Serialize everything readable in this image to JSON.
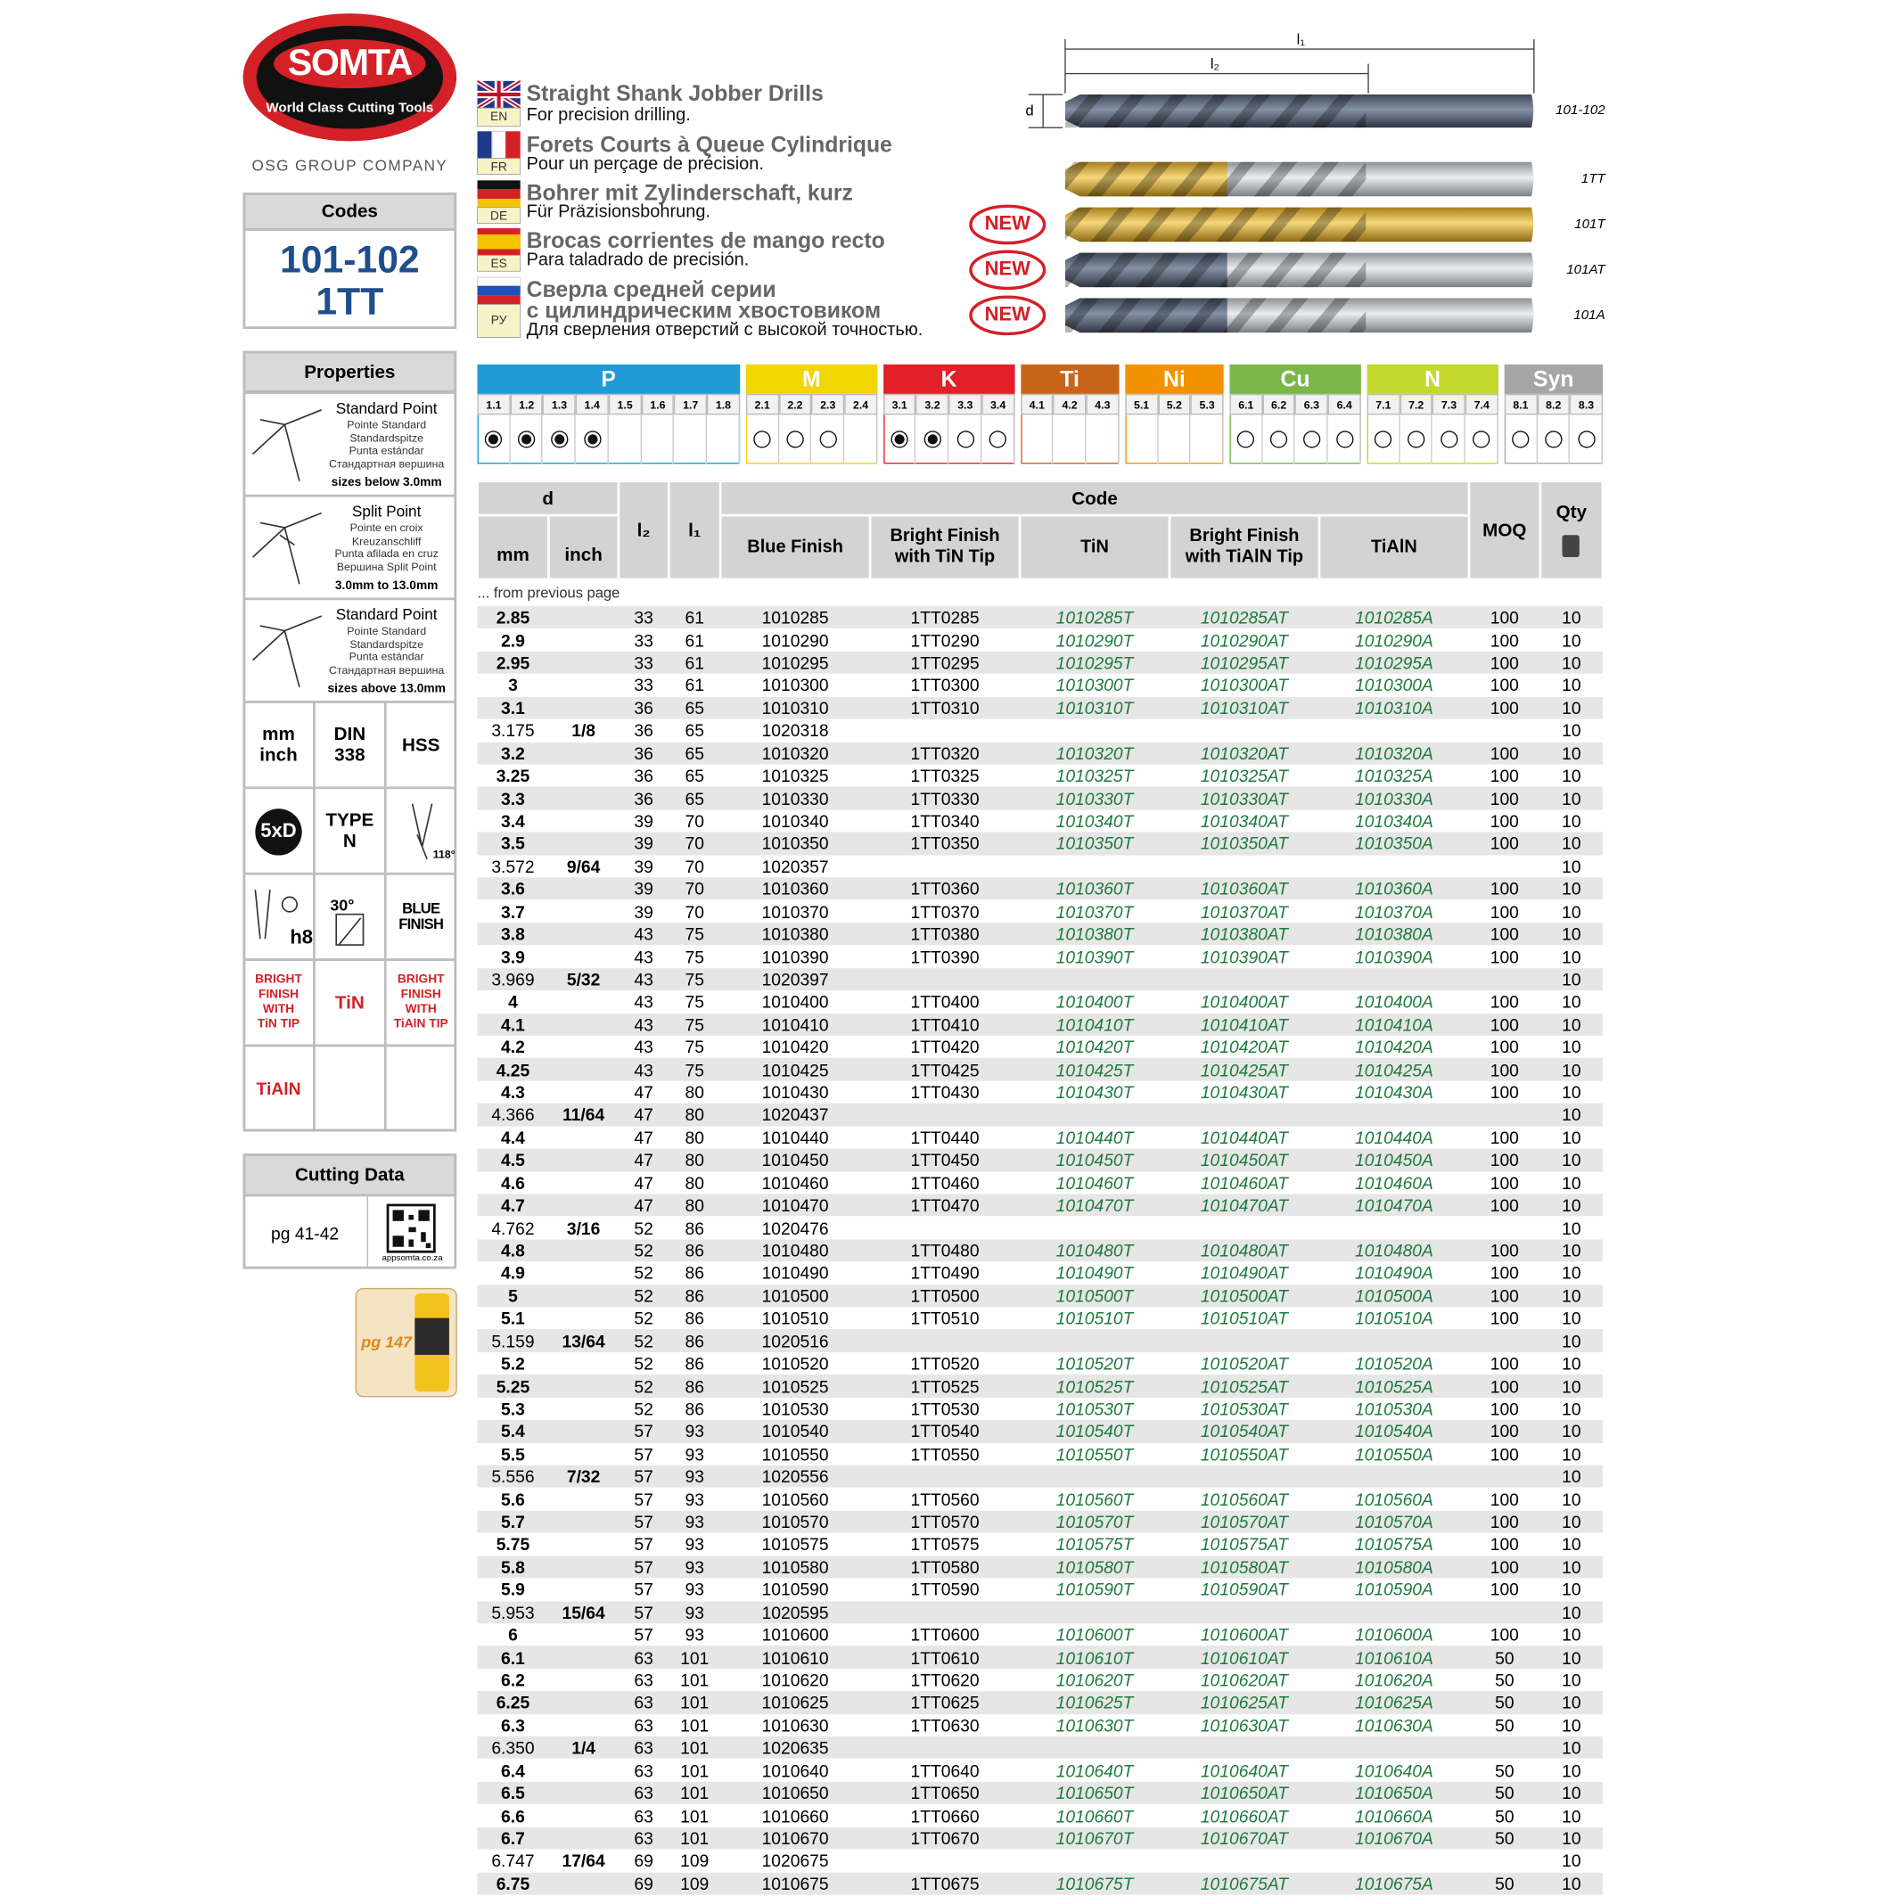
{
  "logo": {
    "brand": "SOMTA",
    "tagline": "World Class Cutting Tools",
    "group": "OSG GROUP COMPANY"
  },
  "sidebar": {
    "codes": {
      "title": "Codes",
      "values": [
        "101-102",
        "1TT"
      ]
    },
    "properties": {
      "title": "Properties",
      "points": [
        {
          "name": "Standard Point",
          "translations": [
            "Pointe Standard",
            "Standardspitze",
            "Punta estándar",
            "Стандартная вершина"
          ],
          "note": "sizes below 3.0mm"
        },
        {
          "name": "Split Point",
          "translations": [
            "Pointe en croix",
            "Kreuzanschliff",
            "Punta afilada en cruz",
            "Вершина Split Point"
          ],
          "note": "3.0mm to 13.0mm"
        },
        {
          "name": "Standard Point",
          "translations": [
            "Pointe Standard",
            "Standardspitze",
            "Punta estándar",
            "Стандартная вершина"
          ],
          "note": "sizes above 13.0mm"
        }
      ],
      "cells": [
        [
          "mm",
          "inch"
        ],
        [
          "DIN",
          "338"
        ],
        [
          "HSS"
        ],
        [
          "5xD"
        ],
        [
          "TYPE",
          "N"
        ],
        [
          "118°"
        ],
        [
          "h8"
        ],
        [
          "30°"
        ],
        [
          "BLUE",
          "FINISH"
        ],
        [
          "BRIGHT",
          "FINISH",
          "WITH",
          "TiN TIP"
        ],
        [
          "TiN"
        ],
        [
          "BRIGHT",
          "FINISH",
          "WITH",
          "TiAlN TIP"
        ],
        [
          "TiAlN"
        ]
      ]
    },
    "cutting_data": {
      "title": "Cutting Data",
      "page": "pg 41-42",
      "qr_caption": "appsomta.co.za"
    },
    "promo": "pg 147"
  },
  "header": {
    "titles": [
      {
        "lang": "EN",
        "title": [
          "Straight Shank Jobber Drills"
        ],
        "subtitle": "For precision drilling."
      },
      {
        "lang": "FR",
        "title": [
          "Forets Courts à Queue Cylindrique"
        ],
        "subtitle": "Pour un perçage de précision."
      },
      {
        "lang": "DE",
        "title": [
          "Bohrer mit Zylinderschaft, kurz"
        ],
        "subtitle": "Für Präzisionsbohrung."
      },
      {
        "lang": "ES",
        "title": [
          "Brocas corrientes de mango recto"
        ],
        "subtitle": "Para taladrado de precisión."
      },
      {
        "lang": "РУ",
        "title": [
          "Сверла средней серии",
          "с цилиндрическим хвостовиком"
        ],
        "subtitle": "Для сверления отверстий с высокой точностью."
      }
    ],
    "dimensions": {
      "l1": "l₁",
      "l2": "l₂",
      "d": "d"
    },
    "drills": [
      "101-102",
      "1TT",
      "101T",
      "101AT",
      "101A"
    ],
    "badges": [
      "NEW",
      "NEW",
      "NEW"
    ]
  },
  "materials": [
    {
      "name": "P",
      "color": "#1e9ad6",
      "subs": [
        "1.1",
        "1.2",
        "1.3",
        "1.4",
        "1.5",
        "1.6",
        "1.7",
        "1.8"
      ],
      "marks": [
        "full",
        "full",
        "full",
        "full",
        null,
        null,
        null,
        null
      ]
    },
    {
      "name": "M",
      "color": "#f2d600",
      "subs": [
        "2.1",
        "2.2",
        "2.3",
        "2.4"
      ],
      "marks": [
        "empty",
        "empty",
        "empty",
        null
      ]
    },
    {
      "name": "K",
      "color": "#e3202a",
      "subs": [
        "3.1",
        "3.2",
        "3.3",
        "3.4"
      ],
      "marks": [
        "full",
        "full",
        "empty",
        "empty"
      ]
    },
    {
      "name": "Ti",
      "color": "#c8651b",
      "subs": [
        "4.1",
        "4.2",
        "4.3"
      ],
      "marks": [
        null,
        null,
        null
      ]
    },
    {
      "name": "Ni",
      "color": "#f39200",
      "subs": [
        "5.1",
        "5.2",
        "5.3"
      ],
      "marks": [
        null,
        null,
        null
      ]
    },
    {
      "name": "Cu",
      "color": "#7ab648",
      "subs": [
        "6.1",
        "6.2",
        "6.3",
        "6.4"
      ],
      "marks": [
        "empty",
        "empty",
        "empty",
        "empty"
      ]
    },
    {
      "name": "N",
      "color": "#c5d82e",
      "subs": [
        "7.1",
        "7.2",
        "7.3",
        "7.4"
      ],
      "marks": [
        "empty",
        "empty",
        "empty",
        "empty"
      ]
    },
    {
      "name": "Syn",
      "color": "#a6a6a6",
      "subs": [
        "8.1",
        "8.2",
        "8.3"
      ],
      "marks": [
        "empty",
        "empty",
        "empty"
      ]
    }
  ],
  "table": {
    "headers": {
      "d": "d",
      "mm": "mm",
      "inch": "inch",
      "l2": "l₂",
      "l1": "l₁",
      "code": "Code",
      "codes": [
        [
          "Blue Finish"
        ],
        [
          "Bright Finish",
          "with TiN Tip"
        ],
        [
          "TiN"
        ],
        [
          "Bright Finish",
          "with TiAlN Tip"
        ],
        [
          "TiAlN"
        ]
      ],
      "moq": "MOQ",
      "qty": "Qty"
    },
    "note": "... from previous page",
    "rows": [
      [
        "2.85",
        null,
        33,
        61,
        "1010285",
        "1TT0285",
        "1010285T",
        "1010285AT",
        "1010285A",
        100,
        10
      ],
      [
        "2.9",
        null,
        33,
        61,
        "1010290",
        "1TT0290",
        "1010290T",
        "1010290AT",
        "1010290A",
        100,
        10
      ],
      [
        "2.95",
        null,
        33,
        61,
        "1010295",
        "1TT0295",
        "1010295T",
        "1010295AT",
        "1010295A",
        100,
        10
      ],
      [
        "3",
        null,
        33,
        61,
        "1010300",
        "1TT0300",
        "1010300T",
        "1010300AT",
        "1010300A",
        100,
        10
      ],
      [
        "3.1",
        null,
        36,
        65,
        "1010310",
        "1TT0310",
        "1010310T",
        "1010310AT",
        "1010310A",
        100,
        10
      ],
      [
        "3.175",
        "1/8",
        36,
        65,
        "1020318",
        null,
        null,
        null,
        null,
        null,
        10
      ],
      [
        "3.2",
        null,
        36,
        65,
        "1010320",
        "1TT0320",
        "1010320T",
        "1010320AT",
        "1010320A",
        100,
        10
      ],
      [
        "3.25",
        null,
        36,
        65,
        "1010325",
        "1TT0325",
        "1010325T",
        "1010325AT",
        "1010325A",
        100,
        10
      ],
      [
        "3.3",
        null,
        36,
        65,
        "1010330",
        "1TT0330",
        "1010330T",
        "1010330AT",
        "1010330A",
        100,
        10
      ],
      [
        "3.4",
        null,
        39,
        70,
        "1010340",
        "1TT0340",
        "1010340T",
        "1010340AT",
        "1010340A",
        100,
        10
      ],
      [
        "3.5",
        null,
        39,
        70,
        "1010350",
        "1TT0350",
        "1010350T",
        "1010350AT",
        "1010350A",
        100,
        10
      ],
      [
        "3.572",
        "9/64",
        39,
        70,
        "1020357",
        null,
        null,
        null,
        null,
        null,
        10
      ],
      [
        "3.6",
        null,
        39,
        70,
        "1010360",
        "1TT0360",
        "1010360T",
        "1010360AT",
        "1010360A",
        100,
        10
      ],
      [
        "3.7",
        null,
        39,
        70,
        "1010370",
        "1TT0370",
        "1010370T",
        "1010370AT",
        "1010370A",
        100,
        10
      ],
      [
        "3.8",
        null,
        43,
        75,
        "1010380",
        "1TT0380",
        "1010380T",
        "1010380AT",
        "1010380A",
        100,
        10
      ],
      [
        "3.9",
        null,
        43,
        75,
        "1010390",
        "1TT0390",
        "1010390T",
        "1010390AT",
        "1010390A",
        100,
        10
      ],
      [
        "3.969",
        "5/32",
        43,
        75,
        "1020397",
        null,
        null,
        null,
        null,
        null,
        10
      ],
      [
        "4",
        null,
        43,
        75,
        "1010400",
        "1TT0400",
        "1010400T",
        "1010400AT",
        "1010400A",
        100,
        10
      ],
      [
        "4.1",
        null,
        43,
        75,
        "1010410",
        "1TT0410",
        "1010410T",
        "1010410AT",
        "1010410A",
        100,
        10
      ],
      [
        "4.2",
        null,
        43,
        75,
        "1010420",
        "1TT0420",
        "1010420T",
        "1010420AT",
        "1010420A",
        100,
        10
      ],
      [
        "4.25",
        null,
        43,
        75,
        "1010425",
        "1TT0425",
        "1010425T",
        "1010425AT",
        "1010425A",
        100,
        10
      ],
      [
        "4.3",
        null,
        47,
        80,
        "1010430",
        "1TT0430",
        "1010430T",
        "1010430AT",
        "1010430A",
        100,
        10
      ],
      [
        "4.366",
        "11/64",
        47,
        80,
        "1020437",
        null,
        null,
        null,
        null,
        null,
        10
      ],
      [
        "4.4",
        null,
        47,
        80,
        "1010440",
        "1TT0440",
        "1010440T",
        "1010440AT",
        "1010440A",
        100,
        10
      ],
      [
        "4.5",
        null,
        47,
        80,
        "1010450",
        "1TT0450",
        "1010450T",
        "1010450AT",
        "1010450A",
        100,
        10
      ],
      [
        "4.6",
        null,
        47,
        80,
        "1010460",
        "1TT0460",
        "1010460T",
        "1010460AT",
        "1010460A",
        100,
        10
      ],
      [
        "4.7",
        null,
        47,
        80,
        "1010470",
        "1TT0470",
        "1010470T",
        "1010470AT",
        "1010470A",
        100,
        10
      ],
      [
        "4.762",
        "3/16",
        52,
        86,
        "1020476",
        null,
        null,
        null,
        null,
        null,
        10
      ],
      [
        "4.8",
        null,
        52,
        86,
        "1010480",
        "1TT0480",
        "1010480T",
        "1010480AT",
        "1010480A",
        100,
        10
      ],
      [
        "4.9",
        null,
        52,
        86,
        "1010490",
        "1TT0490",
        "1010490T",
        "1010490AT",
        "1010490A",
        100,
        10
      ],
      [
        "5",
        null,
        52,
        86,
        "1010500",
        "1TT0500",
        "1010500T",
        "1010500AT",
        "1010500A",
        100,
        10
      ],
      [
        "5.1",
        null,
        52,
        86,
        "1010510",
        "1TT0510",
        "1010510T",
        "1010510AT",
        "1010510A",
        100,
        10
      ],
      [
        "5.159",
        "13/64",
        52,
        86,
        "1020516",
        null,
        null,
        null,
        null,
        null,
        10
      ],
      [
        "5.2",
        null,
        52,
        86,
        "1010520",
        "1TT0520",
        "1010520T",
        "1010520AT",
        "1010520A",
        100,
        10
      ],
      [
        "5.25",
        null,
        52,
        86,
        "1010525",
        "1TT0525",
        "1010525T",
        "1010525AT",
        "1010525A",
        100,
        10
      ],
      [
        "5.3",
        null,
        52,
        86,
        "1010530",
        "1TT0530",
        "1010530T",
        "1010530AT",
        "1010530A",
        100,
        10
      ],
      [
        "5.4",
        null,
        57,
        93,
        "1010540",
        "1TT0540",
        "1010540T",
        "1010540AT",
        "1010540A",
        100,
        10
      ],
      [
        "5.5",
        null,
        57,
        93,
        "1010550",
        "1TT0550",
        "1010550T",
        "1010550AT",
        "1010550A",
        100,
        10
      ],
      [
        "5.556",
        "7/32",
        57,
        93,
        "1020556",
        null,
        null,
        null,
        null,
        null,
        10
      ],
      [
        "5.6",
        null,
        57,
        93,
        "1010560",
        "1TT0560",
        "1010560T",
        "1010560AT",
        "1010560A",
        100,
        10
      ],
      [
        "5.7",
        null,
        57,
        93,
        "1010570",
        "1TT0570",
        "1010570T",
        "1010570AT",
        "1010570A",
        100,
        10
      ],
      [
        "5.75",
        null,
        57,
        93,
        "1010575",
        "1TT0575",
        "1010575T",
        "1010575AT",
        "1010575A",
        100,
        10
      ],
      [
        "5.8",
        null,
        57,
        93,
        "1010580",
        "1TT0580",
        "1010580T",
        "1010580AT",
        "1010580A",
        100,
        10
      ],
      [
        "5.9",
        null,
        57,
        93,
        "1010590",
        "1TT0590",
        "1010590T",
        "1010590AT",
        "1010590A",
        100,
        10
      ],
      [
        "5.953",
        "15/64",
        57,
        93,
        "1020595",
        null,
        null,
        null,
        null,
        null,
        10
      ],
      [
        "6",
        null,
        57,
        93,
        "1010600",
        "1TT0600",
        "1010600T",
        "1010600AT",
        "1010600A",
        100,
        10
      ],
      [
        "6.1",
        null,
        63,
        101,
        "1010610",
        "1TT0610",
        "1010610T",
        "1010610AT",
        "1010610A",
        50,
        10
      ],
      [
        "6.2",
        null,
        63,
        101,
        "1010620",
        "1TT0620",
        "1010620T",
        "1010620AT",
        "1010620A",
        50,
        10
      ],
      [
        "6.25",
        null,
        63,
        101,
        "1010625",
        "1TT0625",
        "1010625T",
        "1010625AT",
        "1010625A",
        50,
        10
      ],
      [
        "6.3",
        null,
        63,
        101,
        "1010630",
        "1TT0630",
        "1010630T",
        "1010630AT",
        "1010630A",
        50,
        10
      ],
      [
        "6.350",
        "1/4",
        63,
        101,
        "1020635",
        null,
        null,
        null,
        null,
        null,
        10
      ],
      [
        "6.4",
        null,
        63,
        101,
        "1010640",
        "1TT0640",
        "1010640T",
        "1010640AT",
        "1010640A",
        50,
        10
      ],
      [
        "6.5",
        null,
        63,
        101,
        "1010650",
        "1TT0650",
        "1010650T",
        "1010650AT",
        "1010650A",
        50,
        10
      ],
      [
        "6.6",
        null,
        63,
        101,
        "1010660",
        "1TT0660",
        "1010660T",
        "1010660AT",
        "1010660A",
        50,
        10
      ],
      [
        "6.7",
        null,
        63,
        101,
        "1010670",
        "1TT0670",
        "1010670T",
        "1010670AT",
        "1010670A",
        50,
        10
      ],
      [
        "6.747",
        "17/64",
        69,
        109,
        "1020675",
        null,
        null,
        null,
        null,
        null,
        10
      ],
      [
        "6.75",
        null,
        69,
        109,
        "1010675",
        "1TT0675",
        "1010675T",
        "1010675AT",
        "1010675A",
        50,
        10
      ]
    ]
  }
}
